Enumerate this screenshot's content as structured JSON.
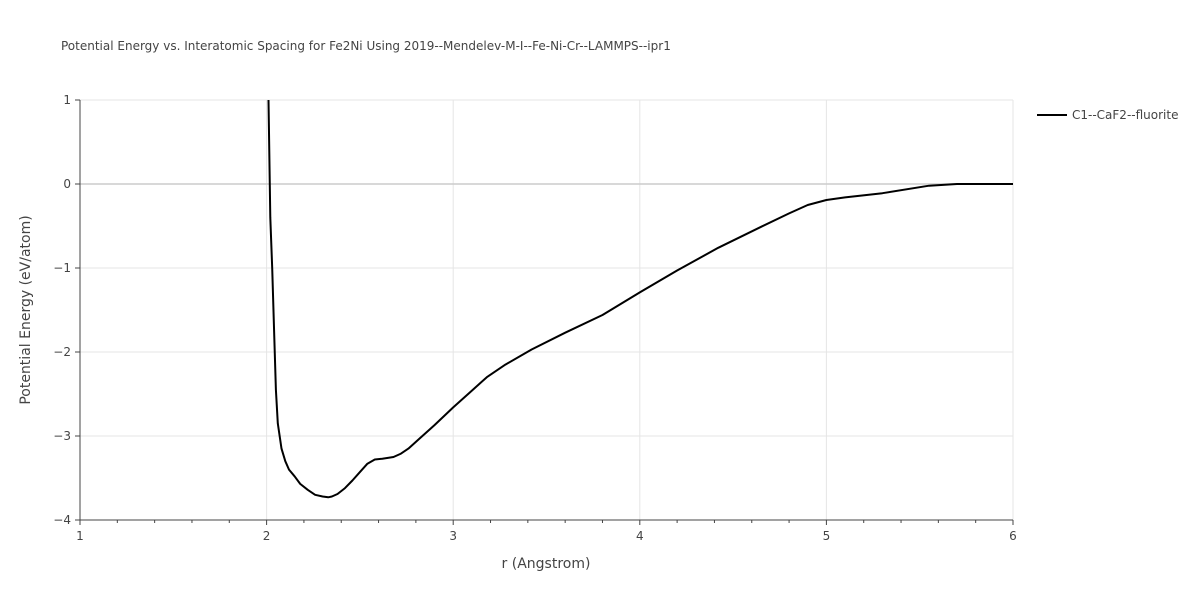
{
  "chart_data": {
    "type": "line",
    "title": "Potential Energy vs. Interatomic Spacing for Fe2Ni Using 2019--Mendelev-M-I--Fe-Ni-Cr--LAMMPS--ipr1",
    "xlabel": "r (Angstrom)",
    "ylabel": "Potential Energy (eV/atom)",
    "xlim": [
      1,
      6
    ],
    "ylim": [
      -4,
      1
    ],
    "xticks": [
      1,
      2,
      3,
      4,
      5,
      6
    ],
    "xtick_labels": [
      "1",
      "2",
      "3",
      "4",
      "5",
      "6"
    ],
    "yticks": [
      -4,
      -3,
      -2,
      -1,
      0,
      1
    ],
    "ytick_labels": [
      "−4",
      "−3",
      "−2",
      "−1",
      "0",
      "1"
    ],
    "x_minor_ticks": [
      1.2,
      1.4,
      1.6,
      1.8,
      2.2,
      2.4,
      2.6,
      2.8,
      3.2,
      3.4,
      3.6,
      3.8,
      4.2,
      4.4,
      4.6,
      4.8,
      5.2,
      5.4,
      5.6,
      5.8
    ],
    "grid": true,
    "legend_position": "top-right",
    "series": [
      {
        "name": "C1--CaF2--fluorite",
        "color": "#000000",
        "x": [
          2.01,
          2.02,
          2.03,
          2.04,
          2.05,
          2.06,
          2.08,
          2.1,
          2.12,
          2.15,
          2.18,
          2.22,
          2.26,
          2.3,
          2.33,
          2.35,
          2.38,
          2.42,
          2.46,
          2.5,
          2.54,
          2.58,
          2.62,
          2.68,
          2.72,
          2.76,
          2.82,
          2.9,
          3.0,
          3.1,
          3.18,
          3.28,
          3.42,
          3.6,
          3.8,
          4.0,
          4.2,
          4.42,
          4.65,
          4.8,
          4.9,
          5.0,
          5.1,
          5.3,
          5.55,
          5.7,
          5.85,
          6.0
        ],
        "y": [
          1.0,
          -0.4,
          -1.0,
          -1.75,
          -2.45,
          -2.85,
          -3.15,
          -3.3,
          -3.4,
          -3.48,
          -3.57,
          -3.64,
          -3.7,
          -3.72,
          -3.73,
          -3.72,
          -3.69,
          -3.62,
          -3.53,
          -3.43,
          -3.33,
          -3.28,
          -3.27,
          -3.25,
          -3.21,
          -3.15,
          -3.03,
          -2.87,
          -2.66,
          -2.46,
          -2.3,
          -2.15,
          -1.97,
          -1.77,
          -1.56,
          -1.29,
          -1.03,
          -0.76,
          -0.51,
          -0.35,
          -0.25,
          -0.19,
          -0.16,
          -0.11,
          -0.02,
          0.0,
          0.0,
          0.0
        ]
      }
    ]
  }
}
